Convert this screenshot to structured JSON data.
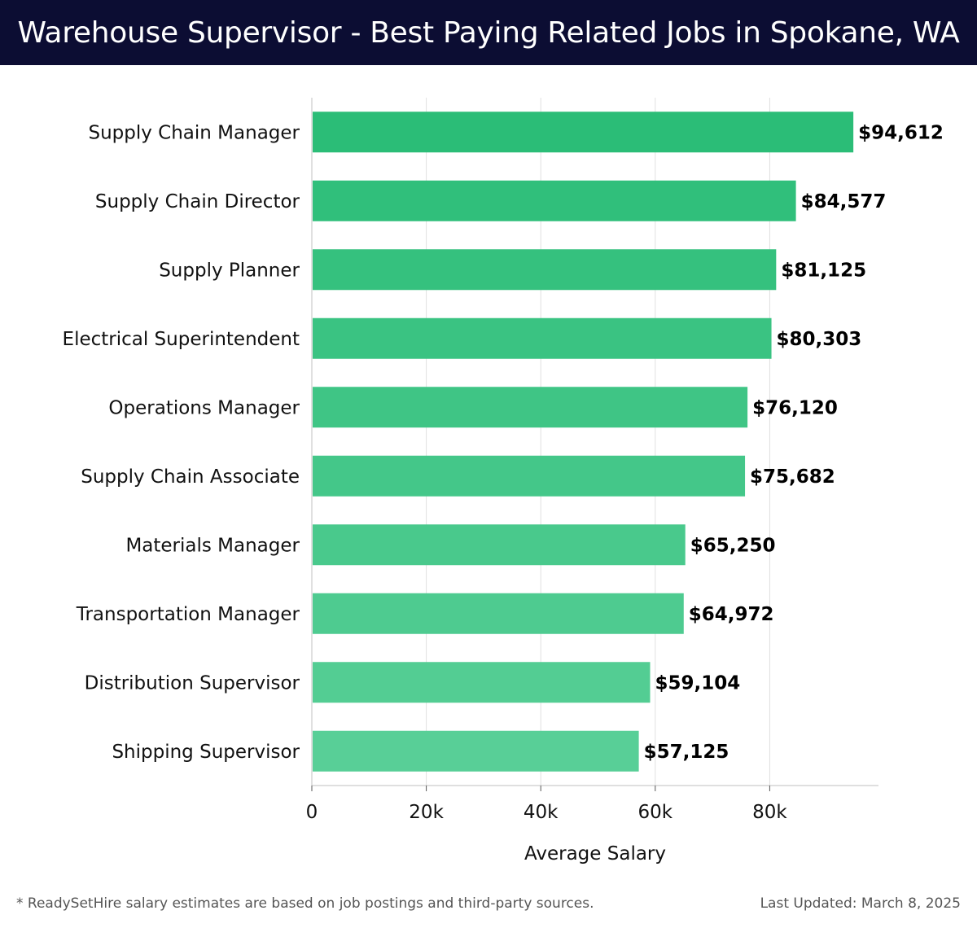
{
  "header": {
    "title": "Warehouse Supervisor - Best Paying Related Jobs in Spokane, WA"
  },
  "footer": {
    "note": "* ReadySetHire salary estimates are based on job postings and third-party sources.",
    "updated": "Last Updated: March 8, 2025"
  },
  "colors": {
    "header_bg": "#0c0d33",
    "bar_top": "#2bbd77",
    "bar_bottom": "#58cf97",
    "grid": "#e0e0e0"
  },
  "chart_data": {
    "type": "bar",
    "orientation": "horizontal",
    "categories": [
      "Supply Chain Manager",
      "Supply Chain Director",
      "Supply Planner",
      "Electrical Superintendent",
      "Operations Manager",
      "Supply Chain Associate",
      "Materials Manager",
      "Transportation Manager",
      "Distribution Supervisor",
      "Shipping Supervisor"
    ],
    "values": [
      94612,
      84577,
      81125,
      80303,
      76120,
      75682,
      65250,
      64972,
      59104,
      57125
    ],
    "value_labels": [
      "$94,612",
      "$84,577",
      "$81,125",
      "$80,303",
      "$76,120",
      "$75,682",
      "$65,250",
      "$64,972",
      "$59,104",
      "$57,125"
    ],
    "xlabel": "Average Salary",
    "ylabel": "",
    "xlim": [
      0,
      99500
    ],
    "xticks": [
      0,
      20000,
      40000,
      60000,
      80000
    ],
    "xtick_labels": [
      "0",
      "20k",
      "40k",
      "60k",
      "80k"
    ],
    "grid": true
  }
}
